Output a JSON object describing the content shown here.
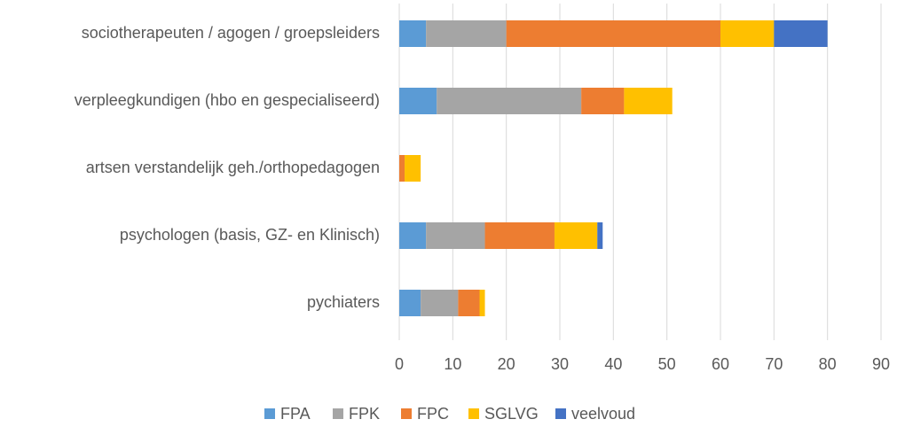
{
  "chart_data": {
    "type": "bar",
    "orientation": "horizontal",
    "stacked": true,
    "categories": [
      "sociotherapeuten / agogen / groepsleiders",
      "verpleegkundigen (hbo en gespecialiseerd)",
      "artsen verstandelijk geh./orthopedagogen",
      "psychologen (basis, GZ- en Klinisch)",
      "pychiaters"
    ],
    "series": [
      {
        "name": "FPA",
        "color": "#5b9bd5",
        "values": [
          5,
          7,
          0,
          5,
          4
        ]
      },
      {
        "name": "FPK",
        "color": "#a5a5a5",
        "values": [
          15,
          27,
          0,
          11,
          7
        ]
      },
      {
        "name": "FPC",
        "color": "#ed7d31",
        "values": [
          40,
          8,
          1,
          13,
          4
        ]
      },
      {
        "name": "SGLVG",
        "color": "#ffc000",
        "values": [
          10,
          9,
          3,
          8,
          1
        ]
      },
      {
        "name": "veelvoud",
        "color": "#4472c4",
        "values": [
          10,
          0,
          0,
          1,
          0
        ]
      }
    ],
    "xlim": [
      0,
      90
    ],
    "xticks": [
      0,
      10,
      20,
      30,
      40,
      50,
      60,
      70,
      80,
      90
    ],
    "grid": true,
    "legend": "bottom"
  }
}
